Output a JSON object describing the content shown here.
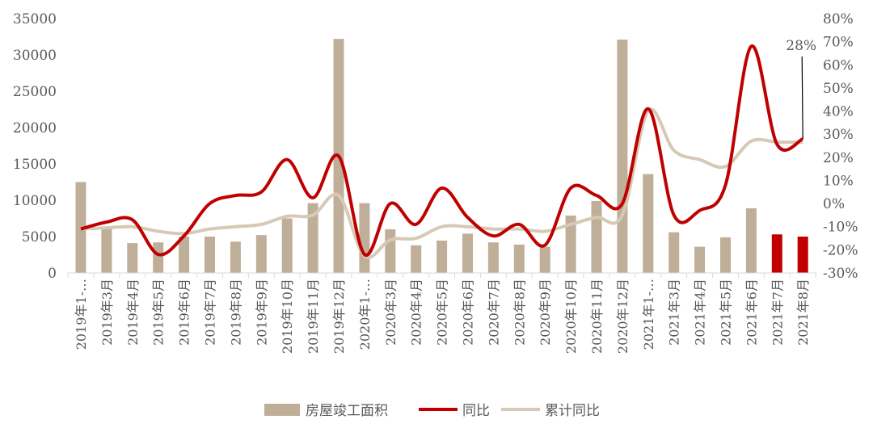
{
  "chart_data": {
    "type": "bar+line",
    "title": "",
    "categories": [
      "2019年1-…",
      "2019年3月",
      "2019年4月",
      "2019年5月",
      "2019年6月",
      "2019年7月",
      "2019年8月",
      "2019年9月",
      "2019年10月",
      "2019年11月",
      "2019年12月",
      "2020年1-…",
      "2020年3月",
      "2020年4月",
      "2020年5月",
      "2020年6月",
      "2020年7月",
      "2020年8月",
      "2020年9月",
      "2020年10月",
      "2020年11月",
      "2020年12月",
      "2021年1-…",
      "2021年3月",
      "2021年4月",
      "2021年5月",
      "2021年6月",
      "2021年7月",
      "2021年8月"
    ],
    "left_axis": {
      "ylim": [
        0,
        35000
      ],
      "ticks": [
        "0",
        "5000",
        "10000",
        "15000",
        "20000",
        "25000",
        "30000",
        "35000"
      ]
    },
    "right_axis": {
      "ylim": [
        -30,
        80
      ],
      "ticks": [
        "-30%",
        "-20%",
        "-10%",
        "0%",
        "10%",
        "20%",
        "30%",
        "40%",
        "50%",
        "60%",
        "70%",
        "80%"
      ]
    },
    "series": [
      {
        "name": "房屋竣工面积",
        "type": "bar",
        "axis": "left",
        "color": "#bfae98",
        "highlight_color": "#c00000",
        "highlight_from_index": 27,
        "values": [
          12500,
          6300,
          4100,
          4200,
          5000,
          5000,
          4300,
          5200,
          7500,
          9600,
          32200,
          9600,
          6000,
          3800,
          4450,
          5400,
          4200,
          3900,
          3600,
          7900,
          9900,
          32100,
          13600,
          5600,
          3600,
          4900,
          8900,
          5300,
          5000
        ]
      },
      {
        "name": "同比",
        "type": "line",
        "axis": "right",
        "color": "#c00000",
        "values": [
          -11,
          -8,
          -7,
          -22,
          -14,
          0,
          3.5,
          5,
          19,
          2.5,
          20.5,
          -22,
          0,
          -9,
          6.7,
          -6,
          -14,
          -9,
          -18,
          6.7,
          3.5,
          0,
          41,
          -5,
          -3,
          8,
          68,
          25.6,
          28
        ]
      },
      {
        "name": "累计同比",
        "type": "line",
        "axis": "right",
        "color": "#d6c9b5",
        "values": [
          -11,
          -10.5,
          -10,
          -12,
          -13,
          -11,
          -10,
          -9,
          -5.5,
          -5,
          3.5,
          -22.7,
          -15.7,
          -15,
          -10,
          -10,
          -11,
          -11,
          -12,
          -9,
          -6,
          -5,
          40,
          23,
          19,
          16,
          27,
          26.6,
          26.5
        ]
      }
    ],
    "annotations": [
      {
        "text": "28%",
        "series": "同比",
        "index": 28
      }
    ],
    "grid": false,
    "legend": "bottom"
  }
}
